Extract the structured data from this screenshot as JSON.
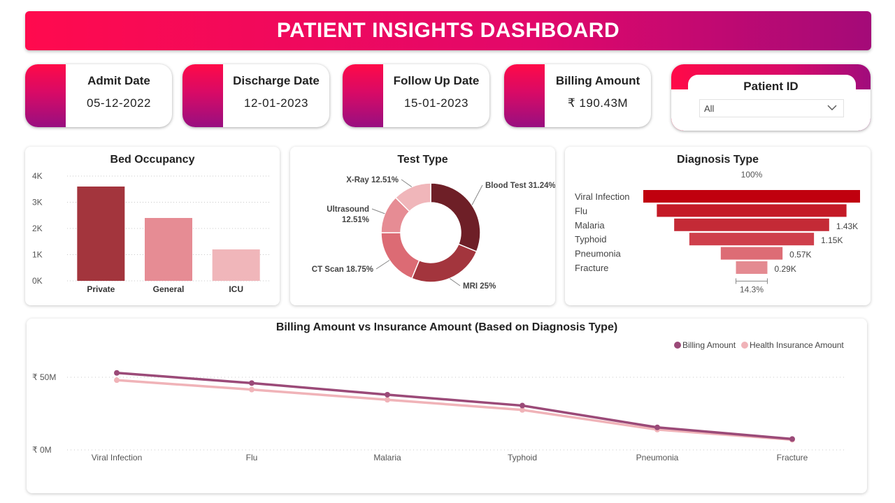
{
  "header": {
    "title": "PATIENT INSIGHTS DASHBOARD"
  },
  "kpis": [
    {
      "label": "Admit Date",
      "value": "05-12-2022"
    },
    {
      "label": "Discharge Date",
      "value": "12-01-2023"
    },
    {
      "label": "Follow Up Date",
      "value": "15-01-2023"
    },
    {
      "label": "Billing Amount",
      "value": "₹ 190.43M"
    }
  ],
  "slicer": {
    "label": "Patient ID",
    "selected": "All",
    "icon": "chevron-down-icon"
  },
  "colors": {
    "accent_pink": "#ff0a4e",
    "accent_purple": "#a40a78",
    "dark_red": "#6e1f27",
    "billing_line": "#9b4a78",
    "insurance_line": "#f0b3b8"
  },
  "bed_occupancy": {
    "title": "Bed Occupancy",
    "y_ticks": [
      "4K",
      "3K",
      "2K",
      "1K",
      "0K"
    ]
  },
  "test_type": {
    "title": "Test Type"
  },
  "diagnosis_type": {
    "title": "Diagnosis Type",
    "top_pct": "100%",
    "bottom_pct": "14.3%"
  },
  "billing_chart": {
    "title": "Billing Amount vs Insurance Amount (Based on Diagnosis Type)",
    "y_ticks": [
      "₹ 50M",
      "₹ 0M"
    ]
  },
  "chart_data": [
    {
      "type": "bar",
      "title": "Bed Occupancy",
      "categories": [
        "Private",
        "General",
        "ICU"
      ],
      "values": [
        3600,
        2400,
        1200
      ],
      "ylim": [
        0,
        4000
      ],
      "colors": [
        "#a3353d",
        "#e68c94",
        "#f0b6ba"
      ],
      "grid": true
    },
    {
      "type": "pie",
      "title": "Test Type",
      "categories": [
        "Blood Test",
        "MRI",
        "CT Scan",
        "Ultrasound",
        "X-Ray"
      ],
      "values": [
        31.24,
        25,
        18.75,
        12.51,
        12.51
      ],
      "labels": [
        "Blood Test 31.24%",
        "MRI 25%",
        "CT Scan 18.75%",
        "Ultrasound",
        "X-Ray 12.51%"
      ],
      "label_line2": "12.51%",
      "colors": [
        "#6e1f27",
        "#a3353d",
        "#dc6b74",
        "#e68c94",
        "#f0b6ba"
      ]
    },
    {
      "type": "bar",
      "title": "Diagnosis Type",
      "categories": [
        "Viral Infection",
        "Flu",
        "Malaria",
        "Typhoid",
        "Pneumonia",
        "Fracture"
      ],
      "values": [
        2000,
        1750,
        1430,
        1150,
        570,
        290
      ],
      "data_labels": [
        "",
        "",
        "1.43K",
        "1.15K",
        "0.57K",
        "0.29K"
      ],
      "colors": [
        "#c0000e",
        "#c41a26",
        "#c42a36",
        "#cf3f4b",
        "#dd6c75",
        "#e48a91"
      ]
    },
    {
      "type": "line",
      "title": "Billing Amount vs Insurance Amount (Based on Diagnosis Type)",
      "categories": [
        "Viral Infection",
        "Flu",
        "Malaria",
        "Typhoid",
        "Pneumonia",
        "Fracture"
      ],
      "series": [
        {
          "name": "Billing Amount",
          "values": [
            53,
            46,
            38,
            30.5,
            15.5,
            7.5
          ],
          "color": "#9b4a78"
        },
        {
          "name": "Health Insurance Amount",
          "values": [
            48,
            41.5,
            34.5,
            27.5,
            14,
            7
          ],
          "color": "#f0b3b8"
        }
      ],
      "ylim": [
        0,
        55
      ],
      "legend": "top-right",
      "grid": true
    }
  ]
}
